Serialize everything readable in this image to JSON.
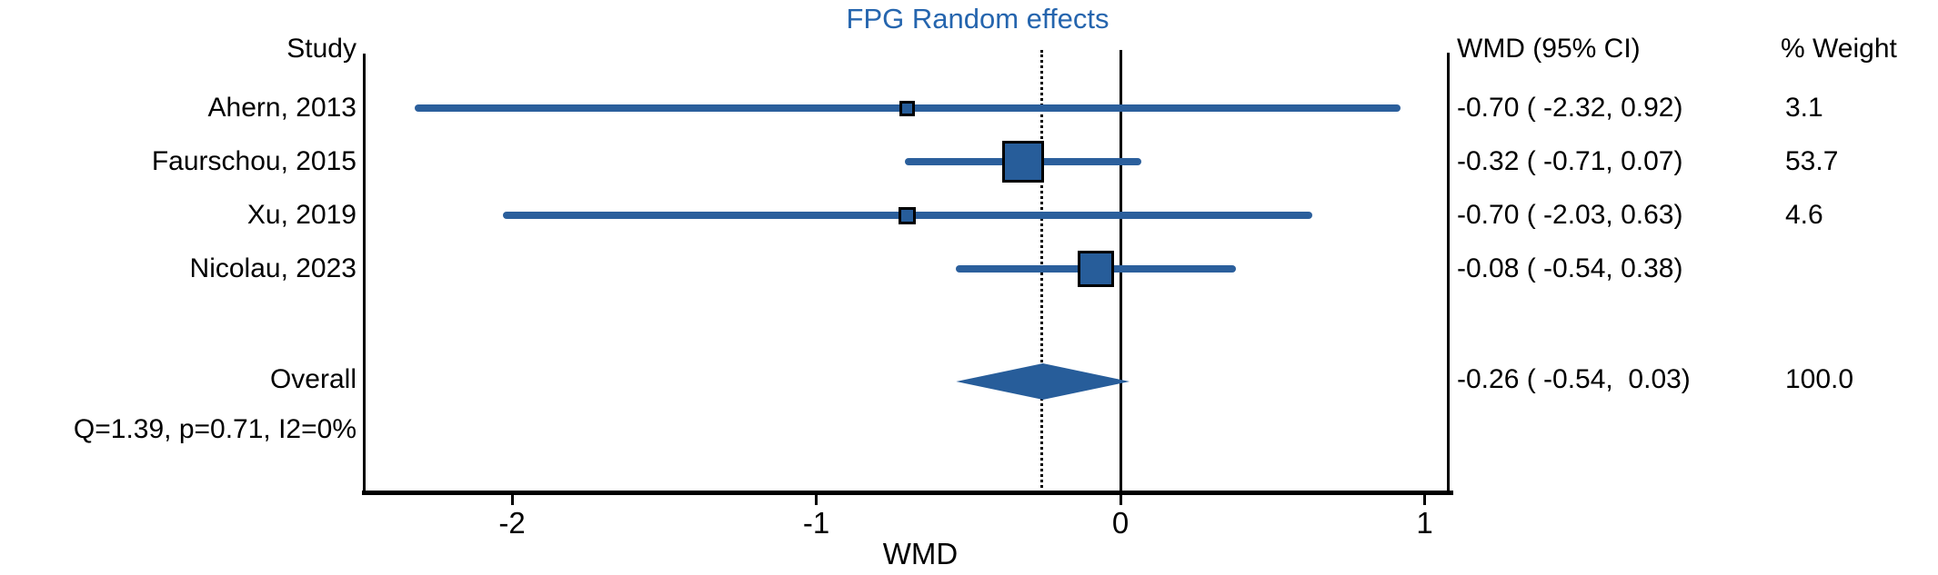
{
  "title": {
    "text": "FPG Random effects",
    "color": "#2565AE"
  },
  "columns": {
    "study_header": "Study",
    "effect_header": "WMD (95% CI)",
    "weight_header": "% Weight"
  },
  "heterogeneity": "Q=1.39, p=0.71, I2=0%",
  "colors": {
    "marker_blue": "#275D9A",
    "line_blue": "#2B5F9C",
    "frame_black": "#000000"
  },
  "chart_data": {
    "type": "forest",
    "title": "FPG Random effects",
    "model": "Random effects",
    "xlabel": "WMD",
    "x_ticks": [
      -2,
      -1,
      0,
      1
    ],
    "x_tick_labels": [
      "-2",
      "-1",
      "0",
      "1"
    ],
    "x_range": [
      -2.48,
      1.08
    ],
    "zero_line": 0,
    "dashed_line_at": -0.26,
    "studies": [
      {
        "label": "Ahern, 2013",
        "estimate": -0.7,
        "ci_low": -2.32,
        "ci_high": 0.92,
        "effect_text": "-0.70 ( -2.32, 0.92)",
        "weight": 3.1,
        "weight_text": "3.1"
      },
      {
        "label": "Faurschou, 2015",
        "estimate": -0.32,
        "ci_low": -0.71,
        "ci_high": 0.07,
        "effect_text": "-0.32 ( -0.71, 0.07)",
        "weight": 53.7,
        "weight_text": "53.7"
      },
      {
        "label": "Xu, 2019",
        "estimate": -0.7,
        "ci_low": -2.03,
        "ci_high": 0.63,
        "effect_text": "-0.70 ( -2.03, 0.63)",
        "weight": 4.6,
        "weight_text": "4.6"
      },
      {
        "label": "Nicolau, 2023",
        "estimate": -0.08,
        "ci_low": -0.54,
        "ci_high": 0.38,
        "effect_text": "-0.08 ( -0.54, 0.38)",
        "weight": null,
        "weight_text": ""
      }
    ],
    "overall": {
      "label": "Overall",
      "estimate": -0.26,
      "ci_low": -0.54,
      "ci_high": 0.03,
      "effect_text": "-0.26 ( -0.54,  0.03)",
      "weight": 100.0,
      "weight_text": "100.0"
    },
    "heterogeneity": {
      "Q": 1.39,
      "p": 0.71,
      "I2_percent": 0,
      "text": "Q=1.39, p=0.71, I2=0%"
    }
  }
}
